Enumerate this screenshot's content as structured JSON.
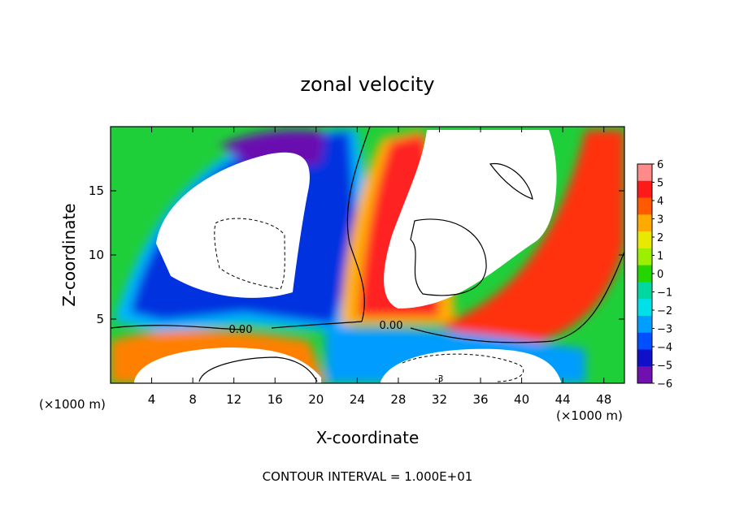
{
  "chart_data": {
    "type": "heatmap",
    "title": "zonal velocity",
    "xlabel": "X-coordinate",
    "ylabel": "Z-coordinate",
    "x_unit_left": "(×1000 m)",
    "x_unit_right": "(×1000 m)",
    "xlim": [
      0,
      50
    ],
    "ylim": [
      0,
      20
    ],
    "x_ticks": [
      4,
      8,
      12,
      16,
      20,
      24,
      28,
      32,
      36,
      40,
      44,
      48
    ],
    "y_ticks": [
      5,
      10,
      15
    ],
    "colorbar": {
      "levels": [
        6,
        5,
        4,
        3,
        2,
        1,
        0,
        -1,
        -2,
        -3,
        -4,
        -5,
        -6
      ],
      "labels": [
        "6",
        "5",
        "4",
        "3",
        "2",
        "1",
        "0",
        "−1",
        "−2",
        "−3",
        "−4",
        "−5",
        "−6"
      ],
      "colors": [
        "#ff8a8a",
        "#ff1a1a",
        "#ff5a00",
        "#ffaa00",
        "#e8e800",
        "#9cef00",
        "#25d500",
        "#00d8a0",
        "#00e0e8",
        "#009fff",
        "#0050ff",
        "#1010c8",
        "#7010b0"
      ]
    },
    "contour_labels": [
      "0.00",
      "0.00",
      "-3"
    ],
    "footer": "CONTOUR INTERVAL = 1.000E+01"
  }
}
